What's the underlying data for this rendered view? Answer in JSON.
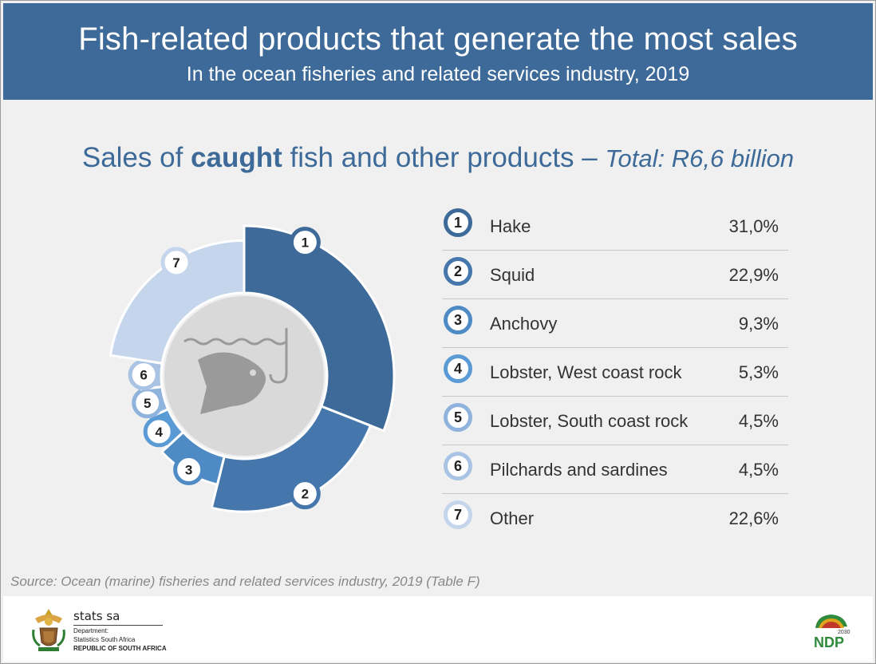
{
  "header": {
    "title": "Fish-related products that generate the most sales",
    "subtitle": "In the ocean fisheries and related services industry, 2019"
  },
  "section": {
    "heading_prefix": "Sales of ",
    "heading_bold": "caught",
    "heading_suffix": " fish and other products – ",
    "heading_total": "Total: R6,6 billion"
  },
  "chart_data": {
    "type": "pie",
    "style": "donut",
    "categories": [
      "Hake",
      "Squid",
      "Anchovy",
      "Lobster, West coast rock",
      "Lobster, South coast rock",
      "Pilchards and sardines",
      "Other"
    ],
    "values": [
      31.0,
      22.9,
      9.3,
      5.3,
      4.5,
      4.5,
      22.6
    ],
    "value_labels": [
      "31,0%",
      "22,9%",
      "9,3%",
      "5,3%",
      "4,5%",
      "4,5%",
      "22,6%"
    ],
    "numbers": [
      "1",
      "2",
      "3",
      "4",
      "5",
      "6",
      "7"
    ],
    "unit": "%",
    "colors": [
      "#3d6a98",
      "#4577ad",
      "#4e8ac4",
      "#5b9bd5",
      "#8fb3dc",
      "#a9c3e4",
      "#c5d6ec"
    ],
    "center_icon": "fish-hook-icon"
  },
  "source": "Source: Ocean (marine) fisheries and related services industry, 2019 (Table F)",
  "footer": {
    "brand": "stats sa",
    "dept_line1": "Department:",
    "dept_line2": "Statistics South Africa",
    "dept_line3": "REPUBLIC OF SOUTH AFRICA",
    "ndp_logo_text": "NDP",
    "ndp_year": "2030"
  }
}
